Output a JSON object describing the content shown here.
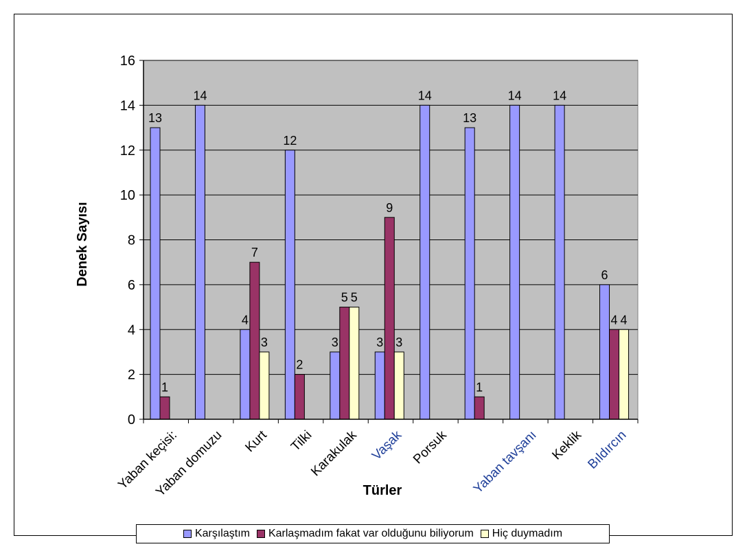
{
  "chart_data": {
    "type": "bar",
    "title": "",
    "xlabel": "Türler",
    "ylabel": "Denek Sayısı",
    "ylim": [
      0,
      16
    ],
    "yticks": [
      0,
      2,
      4,
      6,
      8,
      10,
      12,
      14,
      16
    ],
    "grid": true,
    "legend": "bottom",
    "plot_background": "#c0c0c0",
    "categories": [
      {
        "label": "Yaban keçisi:",
        "color": "#000000"
      },
      {
        "label": "Yaban domuzu",
        "color": "#000000"
      },
      {
        "label": "Kurt",
        "color": "#000000"
      },
      {
        "label": "Tilki",
        "color": "#000000"
      },
      {
        "label": "Karakulak",
        "color": "#000000"
      },
      {
        "label": "Vaşak",
        "color": "#1f3f99"
      },
      {
        "label": "Porsuk",
        "color": "#000000"
      },
      {
        "label": "",
        "color": "#000000"
      },
      {
        "label": "Yaban tavşanı",
        "color": "#1f3f99"
      },
      {
        "label": "Keklik",
        "color": "#000000"
      },
      {
        "label": "Bıldırcın",
        "color": "#1f3f99"
      }
    ],
    "series": [
      {
        "name": "Karşılaştım",
        "color": "#9999ff",
        "values": [
          13,
          14,
          4,
          12,
          3,
          3,
          14,
          13,
          14,
          14,
          6
        ]
      },
      {
        "name": "Karlaşmadım fakat var olduğunu biliyorum",
        "color": "#993366",
        "values": [
          1,
          null,
          7,
          2,
          5,
          9,
          null,
          1,
          null,
          null,
          4
        ]
      },
      {
        "name": "Hiç duymadım",
        "color": "#ffffcc",
        "values": [
          null,
          null,
          3,
          null,
          5,
          3,
          null,
          null,
          null,
          null,
          4
        ]
      }
    ]
  }
}
